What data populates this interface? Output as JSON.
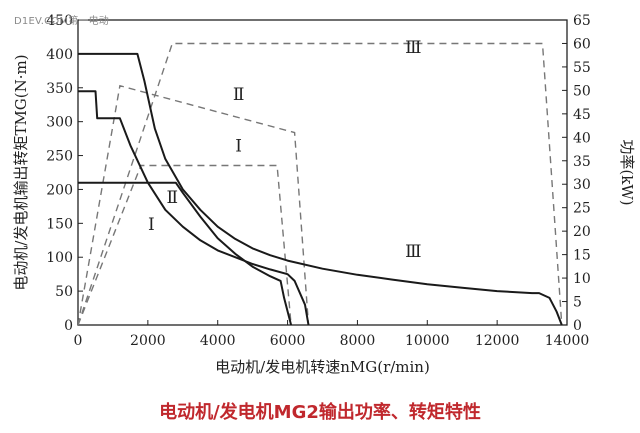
{
  "watermark": "D1EV.COM第一电动",
  "caption": "电动机/发电机MG2输出功率、转矩特性",
  "chart_data": {
    "type": "line",
    "title": "",
    "xlabel": "电动机/发电机转速nMG(r/min)",
    "ylabel_left": "电动机/发电机输出转矩TMG(N·m)",
    "ylabel_right": "功率(kW)",
    "xlim": [
      0,
      14000
    ],
    "ylim_left": [
      0,
      450
    ],
    "ylim_right": [
      0,
      65
    ],
    "x_ticks": [
      "0",
      "2000",
      "4000",
      "6000",
      "8000",
      "10000",
      "12000",
      "14000"
    ],
    "y_left_ticks": [
      "0",
      "50",
      "100",
      "150",
      "200",
      "250",
      "300",
      "350",
      "400",
      "450"
    ],
    "y_right_ticks": [
      "0",
      "5",
      "10",
      "15",
      "20",
      "25",
      "30",
      "35",
      "40",
      "45",
      "50",
      "55",
      "60",
      "65"
    ],
    "grid": false,
    "torque_series": [
      {
        "name": "Ⅰ",
        "axis": "left",
        "style": "solid",
        "points": [
          [
            0,
            210
          ],
          [
            2800,
            210
          ],
          [
            3000,
            195
          ],
          [
            3500,
            160
          ],
          [
            4000,
            128
          ],
          [
            4500,
            105
          ],
          [
            5000,
            86
          ],
          [
            5500,
            72
          ],
          [
            5800,
            65
          ],
          [
            5900,
            40
          ],
          [
            6100,
            0
          ]
        ]
      },
      {
        "name": "Ⅱ",
        "axis": "left",
        "style": "solid",
        "points": [
          [
            0,
            345
          ],
          [
            500,
            345
          ],
          [
            550,
            305
          ],
          [
            1200,
            305
          ],
          [
            1500,
            265
          ],
          [
            2000,
            210
          ],
          [
            2500,
            170
          ],
          [
            3000,
            145
          ],
          [
            3500,
            125
          ],
          [
            4000,
            110
          ],
          [
            4500,
            100
          ],
          [
            5000,
            90
          ],
          [
            5500,
            82
          ],
          [
            6000,
            75
          ],
          [
            6200,
            65
          ],
          [
            6500,
            30
          ],
          [
            6600,
            0
          ]
        ]
      },
      {
        "name": "Ⅲ",
        "axis": "left",
        "style": "solid",
        "points": [
          [
            0,
            400
          ],
          [
            1700,
            400
          ],
          [
            1900,
            360
          ],
          [
            2200,
            290
          ],
          [
            2500,
            245
          ],
          [
            3000,
            200
          ],
          [
            3500,
            170
          ],
          [
            4000,
            145
          ],
          [
            4500,
            127
          ],
          [
            5000,
            113
          ],
          [
            5500,
            103
          ],
          [
            6000,
            95
          ],
          [
            7000,
            83
          ],
          [
            8000,
            74
          ],
          [
            9000,
            67
          ],
          [
            10000,
            60
          ],
          [
            11000,
            55
          ],
          [
            12000,
            50
          ],
          [
            13000,
            47
          ],
          [
            13200,
            47
          ],
          [
            13500,
            40
          ],
          [
            13700,
            20
          ],
          [
            13850,
            0
          ]
        ]
      }
    ],
    "power_series": [
      {
        "name": "Ⅰ",
        "axis": "right",
        "style": "dashed",
        "points": [
          [
            0,
            0
          ],
          [
            1800,
            34
          ],
          [
            5700,
            34
          ],
          [
            6100,
            0
          ]
        ]
      },
      {
        "name": "Ⅱ",
        "axis": "right",
        "style": "dashed",
        "points": [
          [
            0,
            0
          ],
          [
            1200,
            51
          ],
          [
            6200,
            41
          ],
          [
            6600,
            0
          ]
        ]
      },
      {
        "name": "Ⅲ",
        "axis": "right",
        "style": "dashed",
        "points": [
          [
            0,
            0
          ],
          [
            2700,
            60
          ],
          [
            13300,
            60
          ],
          [
            13850,
            0
          ]
        ]
      }
    ],
    "annotations": [
      {
        "text": "Ⅰ",
        "x": 2100,
        "y_left": 140
      },
      {
        "text": "Ⅱ",
        "x": 2700,
        "y_left": 180
      },
      {
        "text": "Ⅲ",
        "x": 9600,
        "y_left": 100
      },
      {
        "text": "Ⅰ",
        "x": 4600,
        "y_right": 37
      },
      {
        "text": "Ⅱ",
        "x": 4600,
        "y_right": 48
      },
      {
        "text": "Ⅲ",
        "x": 9600,
        "y_right": 58
      }
    ]
  }
}
